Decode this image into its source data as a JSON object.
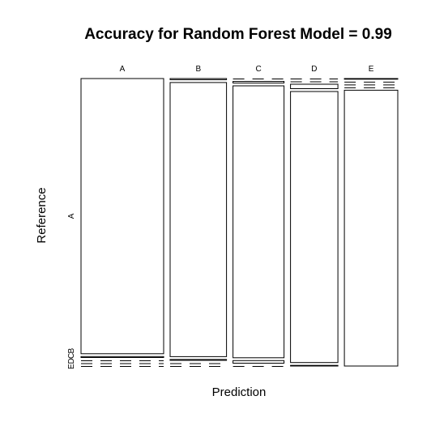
{
  "chart_data": {
    "type": "mosaic",
    "title": "Accuracy for Random Forest Model = 0.99",
    "xlabel": "Prediction",
    "ylabel": "Reference",
    "predictions": [
      "A",
      "B",
      "C",
      "D",
      "E"
    ],
    "references": [
      "A",
      "B",
      "C",
      "D",
      "E"
    ],
    "y_tick_labels": [
      "A",
      "B",
      "C",
      "D",
      "E"
    ],
    "prediction_totals": [
      1395,
      952,
      861,
      800,
      901
    ],
    "cells": [
      [
        1390,
        4,
        0,
        0,
        1
      ],
      [
        5,
        942,
        5,
        0,
        0
      ],
      [
        0,
        3,
        845,
        13,
        0
      ],
      [
        0,
        0,
        8,
        792,
        0
      ],
      [
        0,
        0,
        0,
        2,
        899
      ]
    ],
    "accuracy": 0.99
  }
}
